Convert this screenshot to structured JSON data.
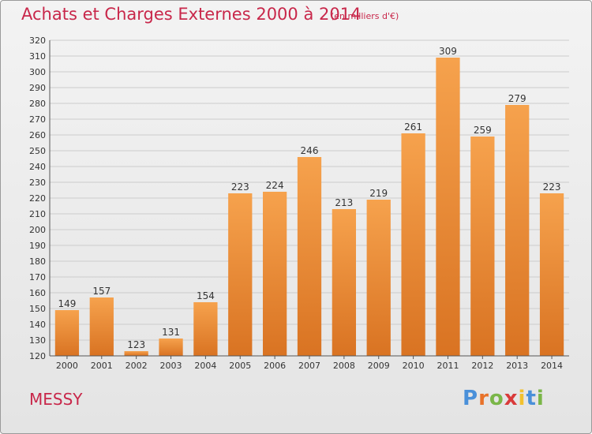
{
  "title": "Achats et Charges Externes 2000 à 2014",
  "unit_note": "(en milliers d'€)",
  "commune": "MESSY",
  "logo": {
    "text": "Proxiti",
    "letter_colors": [
      "#4a90d9",
      "#e8722a",
      "#7ab648",
      "#d93a3a",
      "#f2c12e",
      "#4a90d9",
      "#7ab648"
    ]
  },
  "colors": {
    "accent": "#c8274a",
    "bar_top": "#f6a24d",
    "bar_bottom": "#d97322",
    "grid": "#cccccc"
  },
  "chart_data": {
    "type": "bar",
    "categories": [
      "2000",
      "2001",
      "2002",
      "2003",
      "2004",
      "2005",
      "2006",
      "2007",
      "2008",
      "2009",
      "2010",
      "2011",
      "2012",
      "2013",
      "2014"
    ],
    "values": [
      149,
      157,
      123,
      131,
      154,
      223,
      224,
      246,
      213,
      219,
      261,
      309,
      259,
      279,
      223
    ],
    "ylim": [
      120,
      320
    ],
    "yticks": [
      120,
      130,
      140,
      150,
      160,
      170,
      180,
      190,
      200,
      210,
      220,
      230,
      240,
      250,
      260,
      270,
      280,
      290,
      300,
      310,
      320
    ],
    "grid": true
  }
}
